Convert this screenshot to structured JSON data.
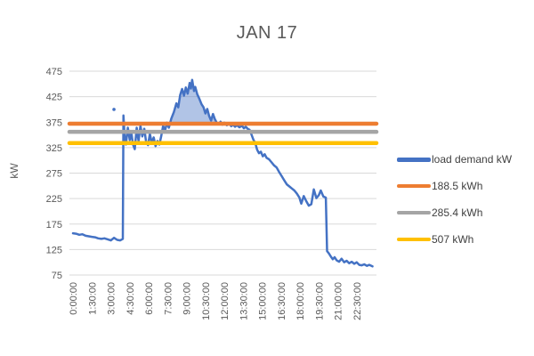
{
  "chart_data": {
    "type": "line",
    "title": "JAN 17",
    "xlabel": "",
    "ylabel": "kW",
    "ylim": [
      75,
      475
    ],
    "y_ticks": [
      75,
      125,
      175,
      225,
      275,
      325,
      375,
      425,
      475
    ],
    "x_tick_labels": [
      "0:00:00",
      "1:30:00",
      "3:00:00",
      "4:30:00",
      "6:00:00",
      "7:30:00",
      "9:00:00",
      "10:30:00",
      "12:00:00",
      "13:30:00",
      "15:00:00",
      "16:30:00",
      "18:00:00",
      "19:30:00",
      "21:00:00",
      "22:30:00"
    ],
    "x_tick_interval_hours": 1.5,
    "x_span_hours": 24,
    "grid": "horizontal",
    "legend_position": "right",
    "series": [
      {
        "name": "load demand kW",
        "color": "#4472C4",
        "points_t_hours_kw": [
          [
            0,
            157
          ],
          [
            0.25,
            156
          ],
          [
            0.5,
            154
          ],
          [
            0.75,
            155
          ],
          [
            1,
            152
          ],
          [
            1.25,
            151
          ],
          [
            1.5,
            150
          ],
          [
            1.75,
            149
          ],
          [
            2,
            147
          ],
          [
            2.25,
            146
          ],
          [
            2.5,
            147
          ],
          [
            2.75,
            145
          ],
          [
            3,
            143
          ],
          [
            3.25,
            148
          ],
          [
            3.5,
            144
          ],
          [
            3.75,
            143
          ],
          [
            3.95,
            146
          ],
          [
            4,
            388
          ],
          [
            4.1,
            345
          ],
          [
            4.2,
            331
          ],
          [
            4.35,
            364
          ],
          [
            4.5,
            340
          ],
          [
            4.62,
            356
          ],
          [
            4.75,
            332
          ],
          [
            4.9,
            322
          ],
          [
            5.05,
            364
          ],
          [
            5.2,
            338
          ],
          [
            5.35,
            368
          ],
          [
            5.5,
            347
          ],
          [
            5.65,
            362
          ],
          [
            5.8,
            336
          ],
          [
            5.95,
            330
          ],
          [
            6.1,
            352
          ],
          [
            6.25,
            334
          ],
          [
            6.4,
            345
          ],
          [
            6.55,
            328
          ],
          [
            6.7,
            338
          ],
          [
            6.85,
            331
          ],
          [
            7,
            348
          ],
          [
            7.15,
            368
          ],
          [
            7.3,
            358
          ],
          [
            7.45,
            374
          ],
          [
            7.6,
            364
          ],
          [
            7.8,
            382
          ],
          [
            8,
            395
          ],
          [
            8.2,
            412
          ],
          [
            8.35,
            404
          ],
          [
            8.5,
            428
          ],
          [
            8.65,
            440
          ],
          [
            8.8,
            427
          ],
          [
            8.95,
            443
          ],
          [
            9.1,
            431
          ],
          [
            9.25,
            452
          ],
          [
            9.35,
            441
          ],
          [
            9.45,
            458
          ],
          [
            9.6,
            436
          ],
          [
            9.7,
            444
          ],
          [
            9.85,
            430
          ],
          [
            10,
            422
          ],
          [
            10.2,
            410
          ],
          [
            10.35,
            404
          ],
          [
            10.5,
            392
          ],
          [
            10.65,
            401
          ],
          [
            10.8,
            387
          ],
          [
            10.95,
            378
          ],
          [
            11.1,
            391
          ],
          [
            11.25,
            381
          ],
          [
            11.4,
            374
          ],
          [
            11.55,
            371
          ],
          [
            11.7,
            376
          ],
          [
            11.85,
            370
          ],
          [
            12,
            374
          ],
          [
            12.2,
            369
          ],
          [
            12.4,
            372
          ],
          [
            12.55,
            367
          ],
          [
            12.7,
            370
          ],
          [
            12.85,
            366
          ],
          [
            13,
            369
          ],
          [
            13.2,
            365
          ],
          [
            13.4,
            368
          ],
          [
            13.55,
            363
          ],
          [
            13.7,
            366
          ],
          [
            13.85,
            362
          ],
          [
            14,
            360
          ],
          [
            14.15,
            351
          ],
          [
            14.3,
            341
          ],
          [
            14.45,
            334
          ],
          [
            14.6,
            321
          ],
          [
            14.75,
            314
          ],
          [
            14.9,
            317
          ],
          [
            15.05,
            308
          ],
          [
            15.2,
            312
          ],
          [
            15.35,
            305
          ],
          [
            15.55,
            302
          ],
          [
            15.75,
            296
          ],
          [
            15.95,
            290
          ],
          [
            16.15,
            286
          ],
          [
            16.35,
            277
          ],
          [
            16.55,
            269
          ],
          [
            16.75,
            261
          ],
          [
            16.95,
            253
          ],
          [
            17.15,
            249
          ],
          [
            17.35,
            245
          ],
          [
            17.55,
            241
          ],
          [
            17.75,
            235
          ],
          [
            17.95,
            227
          ],
          [
            18.1,
            215
          ],
          [
            18.3,
            230
          ],
          [
            18.5,
            220
          ],
          [
            18.7,
            211
          ],
          [
            18.9,
            214
          ],
          [
            19.1,
            243
          ],
          [
            19.3,
            226
          ],
          [
            19.5,
            232
          ],
          [
            19.65,
            241
          ],
          [
            19.85,
            229
          ],
          [
            20.05,
            227
          ],
          [
            20.15,
            122
          ],
          [
            20.3,
            117
          ],
          [
            20.45,
            111
          ],
          [
            20.6,
            106
          ],
          [
            20.75,
            110
          ],
          [
            20.9,
            104
          ],
          [
            21.1,
            101
          ],
          [
            21.3,
            107
          ],
          [
            21.5,
            100
          ],
          [
            21.7,
            103
          ],
          [
            21.9,
            98
          ],
          [
            22.1,
            101
          ],
          [
            22.3,
            97
          ],
          [
            22.5,
            100
          ],
          [
            22.7,
            95
          ],
          [
            22.9,
            94
          ],
          [
            23.1,
            96
          ],
          [
            23.3,
            93
          ],
          [
            23.5,
            95
          ],
          [
            23.75,
            92
          ]
        ]
      }
    ],
    "reference_lines": [
      {
        "name": "188.5 kWh",
        "color": "#ED7D31",
        "level_kw": 372
      },
      {
        "name": "285.4 kWh",
        "color": "#A5A5A5",
        "level_kw": 356
      },
      {
        "name": "507 kWh",
        "color": "#FFC000",
        "level_kw": 334
      }
    ],
    "stray_point": {
      "t": 3.25,
      "kw": 400,
      "color": "#4472C4"
    },
    "peak_fill": {
      "from_t": 7.45,
      "to_t": 11.95,
      "baseline_kw": 372,
      "color": "rgba(68,114,196,0.42)"
    }
  },
  "legend": {
    "items": [
      {
        "label": "load demand kW",
        "color": "#4472C4"
      },
      {
        "label": "188.5 kWh",
        "color": "#ED7D31"
      },
      {
        "label": "285.4 kWh",
        "color": "#A5A5A5"
      },
      {
        "label": "507 kWh",
        "color": "#FFC000"
      }
    ]
  },
  "colors": {
    "grid": "#D9D9D9",
    "axis_text": "#595959",
    "title_text": "#595959",
    "background": "#FFFFFF"
  }
}
